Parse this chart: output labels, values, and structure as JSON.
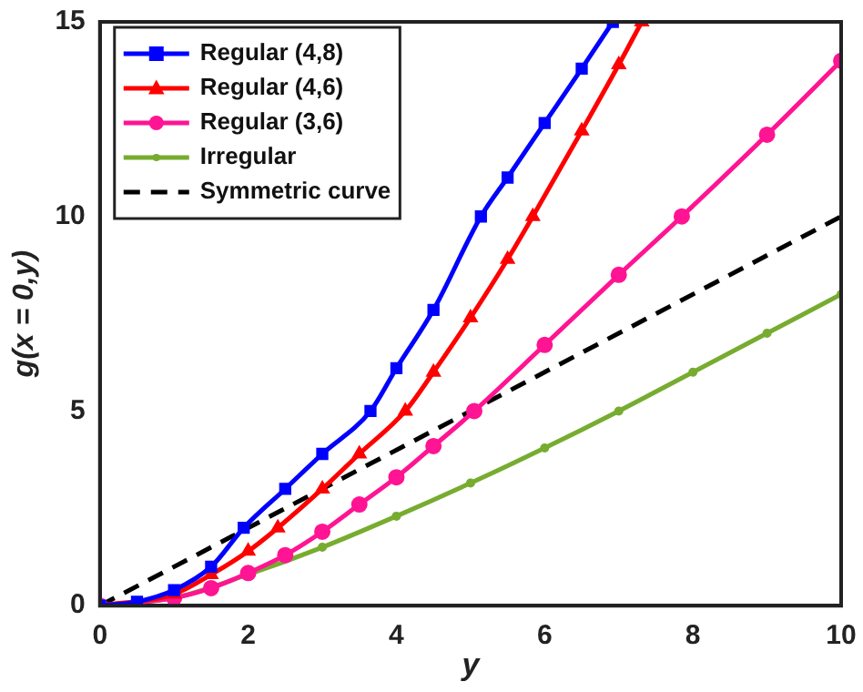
{
  "chart_data": {
    "type": "line",
    "xlabel": "y",
    "ylabel": "g(x = 0,y)",
    "xlim": [
      0,
      10
    ],
    "ylim": [
      0,
      15
    ],
    "xticks": [
      0,
      2,
      4,
      6,
      8,
      10
    ],
    "yticks": [
      0,
      5,
      10,
      15
    ],
    "grid": false,
    "legend": "top left",
    "series": [
      {
        "name": "Regular (4,8)",
        "color": "#0000ff",
        "marker": "square",
        "line_style": "solid",
        "x": [
          0,
          0.5,
          1,
          1.5,
          1.94,
          2.5,
          3,
          3.65,
          4,
          4.5,
          5.14,
          5.5,
          6,
          6.5,
          6.92
        ],
        "values": [
          0,
          0.1,
          0.4,
          1.0,
          2.0,
          3.0,
          3.9,
          5.0,
          6.1,
          7.6,
          10,
          11.0,
          12.4,
          13.8,
          15
        ]
      },
      {
        "name": "Regular (4,6)",
        "color": "#ff0000",
        "marker": "triangle",
        "line_style": "solid",
        "x": [
          0,
          1,
          1.5,
          2,
          2.4,
          3,
          3.5,
          4.12,
          4.5,
          5,
          5.5,
          5.84,
          6.5,
          7,
          7.31
        ],
        "values": [
          0,
          0.3,
          0.8,
          1.4,
          2.0,
          3.0,
          3.9,
          5.0,
          6.0,
          7.4,
          8.9,
          10,
          12.2,
          13.9,
          15
        ]
      },
      {
        "name": "Regular (3,6)",
        "color": "#ff1493",
        "marker": "circle",
        "line_style": "solid",
        "x": [
          0,
          1,
          1.5,
          2,
          2.5,
          3,
          3.5,
          4,
          4.5,
          5.05,
          6,
          7,
          7.85,
          9,
          10
        ],
        "values": [
          0,
          0.2,
          0.45,
          0.84,
          1.3,
          1.9,
          2.6,
          3.3,
          4.1,
          5.0,
          6.7,
          8.5,
          10,
          12.1,
          14
        ]
      },
      {
        "name": "Irregular",
        "color": "#77ac30",
        "marker": "circle",
        "line_style": "solid",
        "x": [
          0,
          1,
          2,
          3,
          4,
          5,
          6,
          7,
          8,
          9,
          10
        ],
        "values": [
          0,
          0.2,
          0.8,
          1.5,
          2.3,
          3.15,
          4.05,
          5.0,
          6.0,
          7.0,
          8.0
        ]
      },
      {
        "name": "Symmetric curve",
        "color": "#000000",
        "marker": "none",
        "line_style": "dashed",
        "x": [
          0,
          10
        ],
        "values": [
          0,
          10
        ]
      }
    ]
  }
}
